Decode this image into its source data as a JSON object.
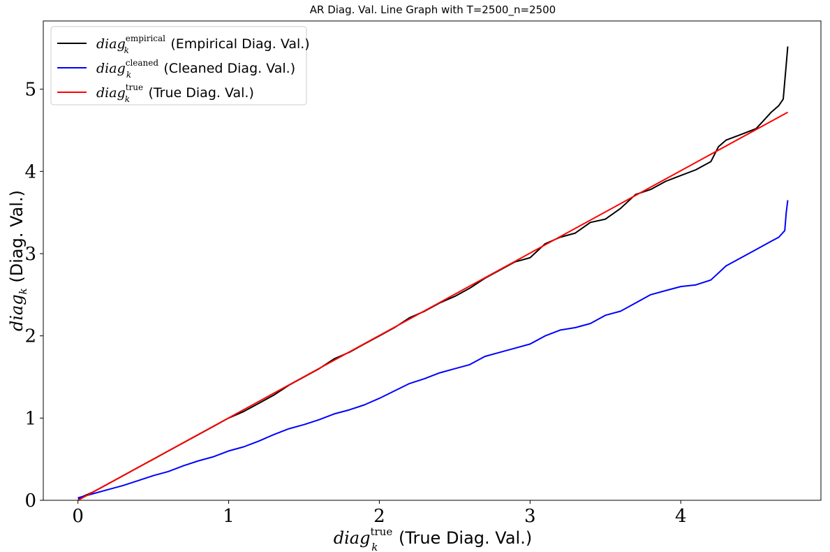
{
  "chart_data": {
    "type": "line",
    "title": "AR Diag. Val. Line Graph with T=2500_n=2500",
    "xlabel": {
      "math": "diag",
      "sup": "true",
      "sub": "k",
      "text": "(True Diag. Val.)"
    },
    "ylabel": {
      "math": "diag",
      "sub": "k",
      "text": "(Diag. Val.)"
    },
    "xlim": [
      -0.23,
      4.93
    ],
    "ylim": [
      0,
      5.83
    ],
    "xticks": [
      0,
      1,
      2,
      3,
      4
    ],
    "yticks": [
      0,
      1,
      2,
      3,
      4,
      5
    ],
    "grid": false,
    "legend_position": "top-left",
    "series": [
      {
        "name": "Empirical Diag. Val.",
        "legend_math": "diag",
        "legend_sup": "empirical",
        "legend_sub": "k",
        "legend_text": "(Empirical Diag. Val.)",
        "color": "#000000",
        "x": [
          0,
          0.05,
          0.1,
          0.2,
          0.3,
          0.4,
          0.5,
          0.6,
          0.7,
          0.8,
          0.9,
          1.0,
          1.1,
          1.2,
          1.3,
          1.4,
          1.5,
          1.6,
          1.7,
          1.8,
          1.9,
          2.0,
          2.1,
          2.2,
          2.3,
          2.4,
          2.5,
          2.6,
          2.7,
          2.8,
          2.9,
          3.0,
          3.1,
          3.2,
          3.3,
          3.4,
          3.5,
          3.6,
          3.7,
          3.8,
          3.9,
          4.0,
          4.1,
          4.2,
          4.25,
          4.3,
          4.4,
          4.5,
          4.55,
          4.6,
          4.65,
          4.68,
          4.7,
          4.71
        ],
        "y": [
          0.02,
          0.06,
          0.1,
          0.2,
          0.3,
          0.4,
          0.5,
          0.6,
          0.7,
          0.8,
          0.9,
          1.0,
          1.08,
          1.18,
          1.28,
          1.4,
          1.5,
          1.6,
          1.72,
          1.8,
          1.9,
          2.0,
          2.1,
          2.22,
          2.3,
          2.4,
          2.48,
          2.58,
          2.7,
          2.8,
          2.9,
          2.95,
          3.12,
          3.2,
          3.25,
          3.38,
          3.42,
          3.55,
          3.72,
          3.78,
          3.88,
          3.95,
          4.02,
          4.12,
          4.3,
          4.38,
          4.45,
          4.52,
          4.62,
          4.72,
          4.8,
          4.88,
          5.3,
          5.52
        ]
      },
      {
        "name": "Cleaned Diag. Val.",
        "legend_math": "diag",
        "legend_sup": "cleaned",
        "legend_sub": "k",
        "legend_text": "(Cleaned Diag. Val.)",
        "color": "#0000ff",
        "x": [
          0,
          0.1,
          0.2,
          0.3,
          0.4,
          0.5,
          0.6,
          0.7,
          0.8,
          0.9,
          1.0,
          1.1,
          1.2,
          1.3,
          1.4,
          1.5,
          1.6,
          1.7,
          1.8,
          1.9,
          2.0,
          2.1,
          2.2,
          2.3,
          2.4,
          2.5,
          2.6,
          2.7,
          2.8,
          2.9,
          3.0,
          3.1,
          3.2,
          3.3,
          3.4,
          3.5,
          3.6,
          3.7,
          3.8,
          3.9,
          4.0,
          4.1,
          4.2,
          4.3,
          4.4,
          4.5,
          4.6,
          4.65,
          4.69,
          4.7,
          4.71
        ],
        "y": [
          0.03,
          0.08,
          0.13,
          0.18,
          0.24,
          0.3,
          0.35,
          0.42,
          0.48,
          0.53,
          0.6,
          0.65,
          0.72,
          0.8,
          0.87,
          0.92,
          0.98,
          1.05,
          1.1,
          1.16,
          1.24,
          1.33,
          1.42,
          1.48,
          1.55,
          1.6,
          1.65,
          1.75,
          1.8,
          1.85,
          1.9,
          2.0,
          2.07,
          2.1,
          2.15,
          2.25,
          2.3,
          2.4,
          2.5,
          2.55,
          2.6,
          2.62,
          2.68,
          2.85,
          2.95,
          3.05,
          3.15,
          3.2,
          3.28,
          3.5,
          3.65
        ]
      },
      {
        "name": "True Diag. Val.",
        "legend_math": "diag",
        "legend_sup": "true",
        "legend_sub": "k",
        "legend_text": "(True Diag. Val.)",
        "color": "#ff0000",
        "x": [
          0,
          4.71
        ],
        "y": [
          0,
          4.72
        ]
      }
    ]
  }
}
